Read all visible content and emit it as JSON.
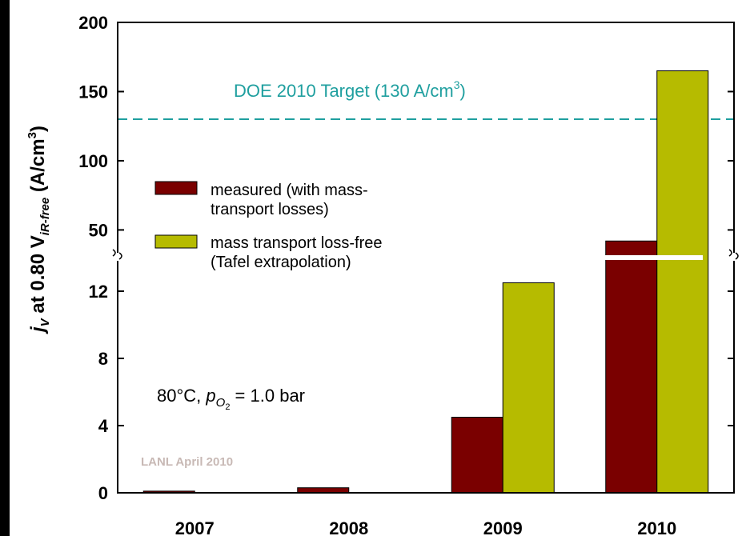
{
  "chart_data": {
    "type": "bar",
    "categories": [
      "2007",
      "2008",
      "2009",
      "2010"
    ],
    "series": [
      {
        "name": "measured (with mass-\ntransport losses)",
        "color": "#7a0000",
        "values": [
          0.1,
          0.3,
          4.5,
          42
        ]
      },
      {
        "name": "mass transport loss-free\n(Tafel extrapolation)",
        "color": "#b6bb00",
        "values": [
          null,
          null,
          12.5,
          165
        ]
      }
    ],
    "ylabel": {
      "main": "j",
      "sub1": "V",
      "mid": " at 0.80 V",
      "sub2": "iR-free",
      "tail": " (A/cm",
      "sup": "3",
      "end": ")"
    },
    "y_axis": {
      "scale": "broken",
      "lower_range": [
        0,
        14
      ],
      "lower_ticks": [
        "0",
        "4",
        "8",
        "12"
      ],
      "upper_range": [
        30,
        200
      ],
      "upper_ticks": [
        "50",
        "100",
        "150",
        "200"
      ]
    },
    "reference_line": {
      "value": 130,
      "color": "#1f9f9f",
      "label_main": "DOE 2010 Target (130 A/cm",
      "label_sup": "3",
      "label_end": ")"
    },
    "annotation": {
      "pre": "80°C, ",
      "p": "p",
      "sub": "O",
      "sub2": "2",
      "post": " = 1.0 bar"
    },
    "watermark": "LANL April 2010",
    "legend_position": "upper-left"
  }
}
